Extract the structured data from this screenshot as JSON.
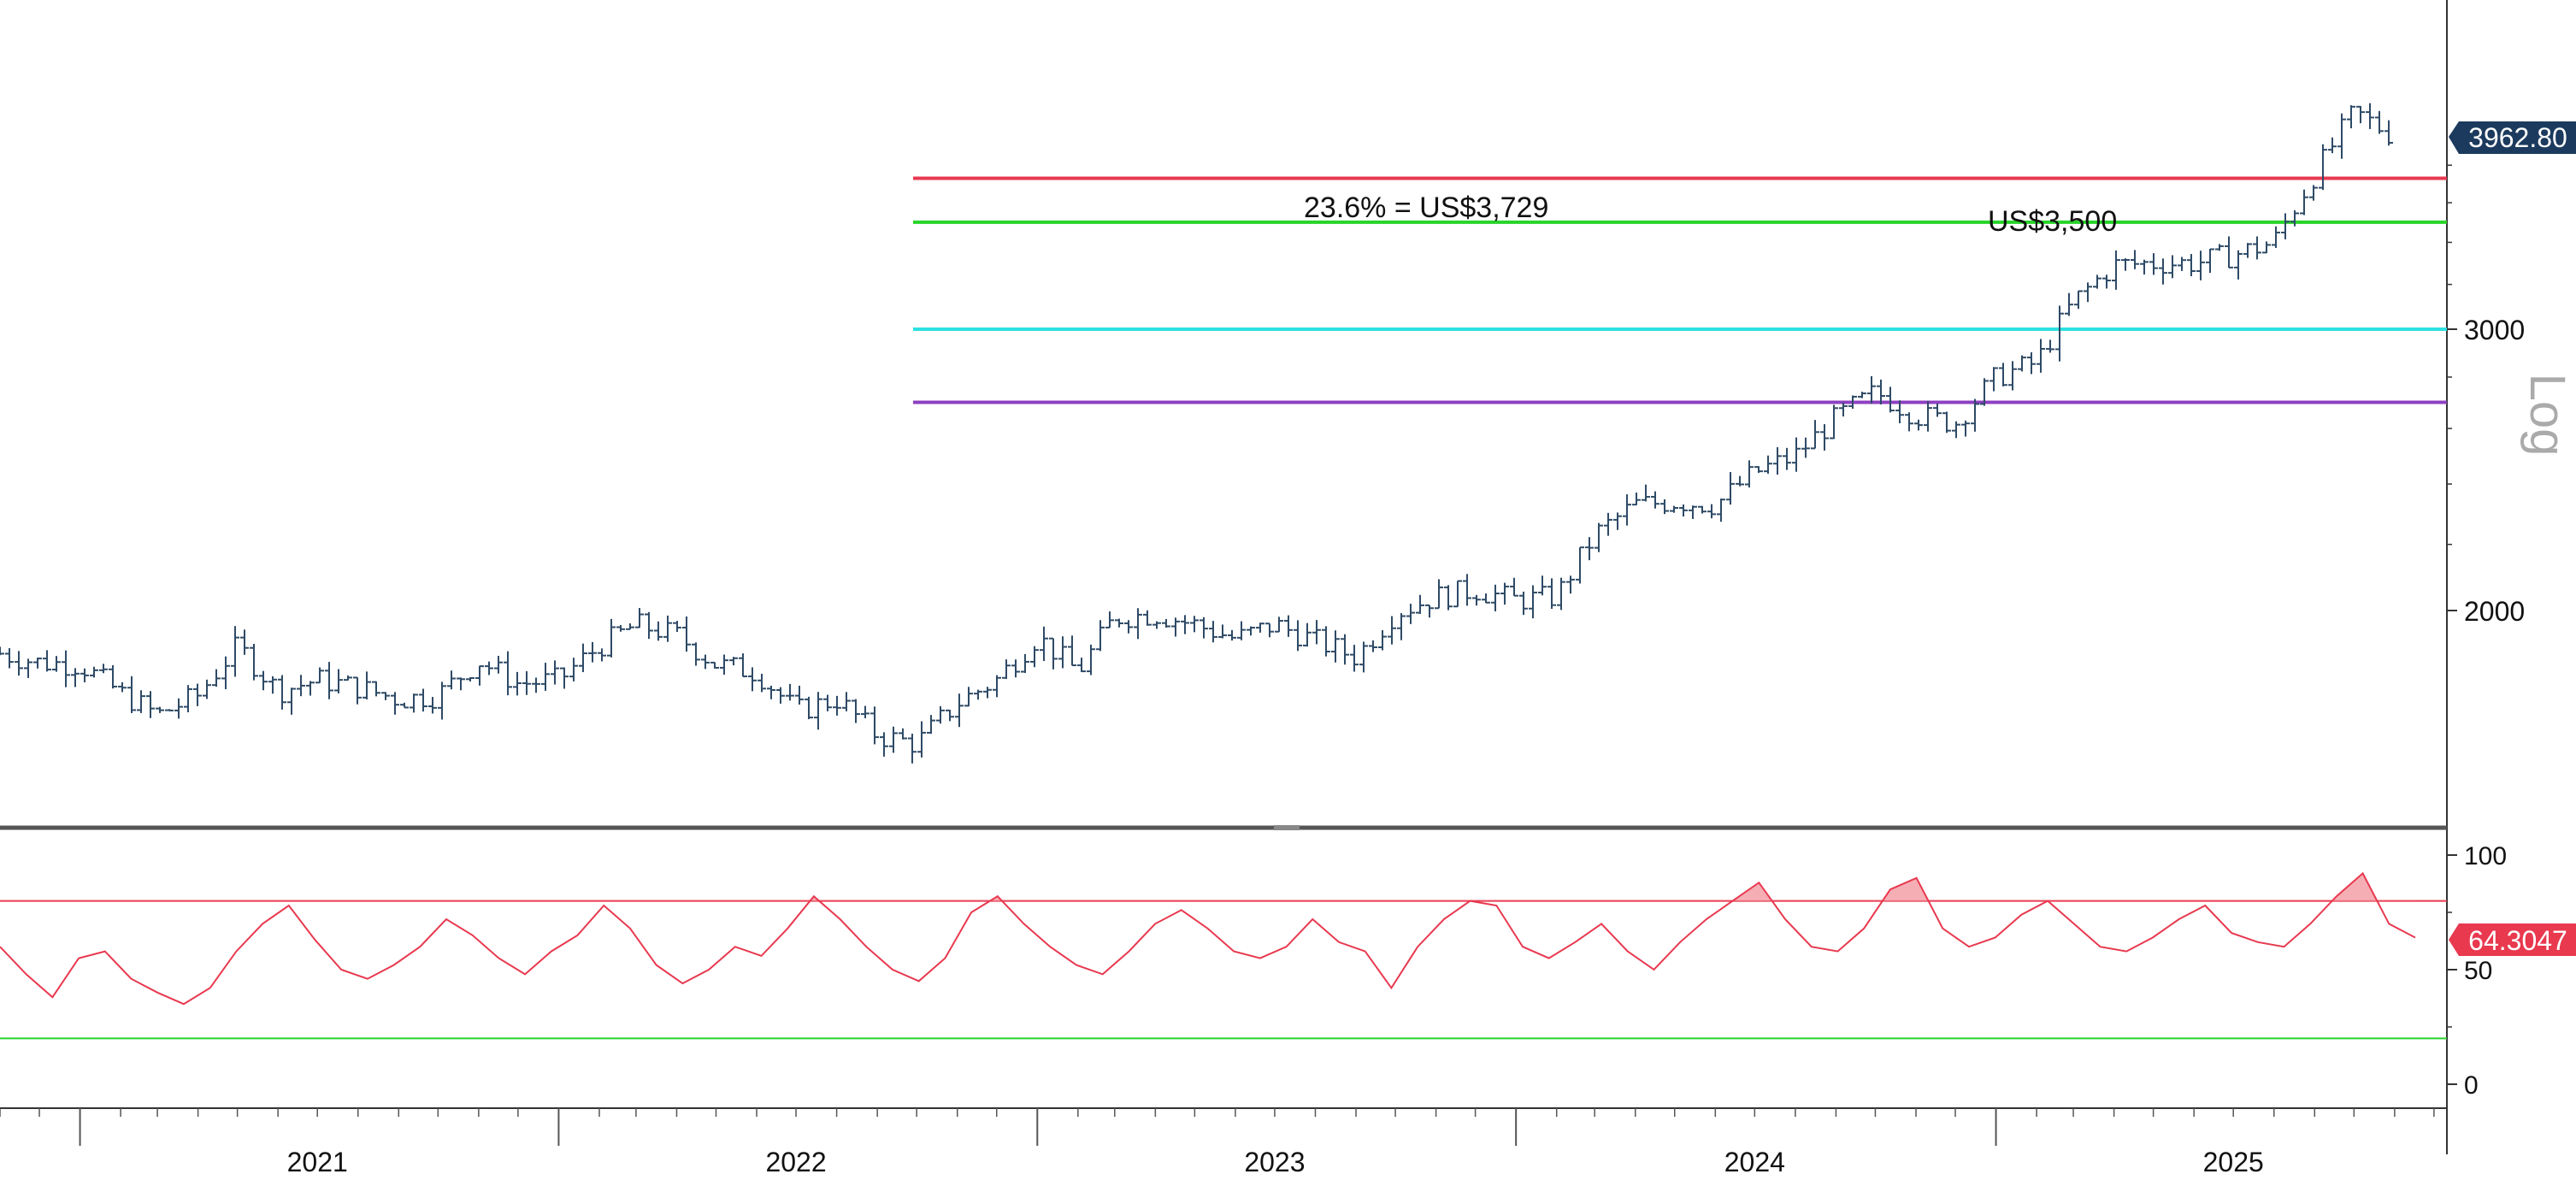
{
  "chart_data": [
    {
      "type": "line",
      "style": "ohlc-bars",
      "panel": "price",
      "scale": "log",
      "axis_label": "Log",
      "y_ticks": [
        2000,
        3000
      ],
      "last_value_label": "3962.80",
      "last_value": 3962.8,
      "colors": {
        "bars": "#2e4a66",
        "last_badge": "#1c3a5e"
      },
      "annotations": [
        {
          "text": "23.6% = US$3,729"
        },
        {
          "text": "US$3,500"
        }
      ],
      "levels": [
        {
          "value": 3729,
          "color": "#e8394f"
        },
        {
          "value": 3500,
          "color": "#28d42a"
        },
        {
          "value": 3000,
          "color": "#2ee0e0"
        },
        {
          "value": 2700,
          "color": "#8d3fc0"
        }
      ],
      "x_period": [
        "2020-11",
        "2025-11"
      ],
      "series_points": [
        [
          "2020-11",
          1880
        ],
        [
          "2020-12",
          1855
        ],
        [
          "2021-01",
          1850
        ],
        [
          "2021-02",
          1775
        ],
        [
          "2021-03",
          1720
        ],
        [
          "2021-04",
          1770
        ],
        [
          "2021-05",
          1900
        ],
        [
          "2021-06",
          1780
        ],
        [
          "2021-07",
          1810
        ],
        [
          "2021-08",
          1790
        ],
        [
          "2021-09",
          1760
        ],
        [
          "2021-10",
          1770
        ],
        [
          "2021-11",
          1860
        ],
        [
          "2021-12",
          1800
        ],
        [
          "2022-01",
          1810
        ],
        [
          "2022-02",
          1900
        ],
        [
          "2022-03",
          1960
        ],
        [
          "2022-04",
          1930
        ],
        [
          "2022-05",
          1850
        ],
        [
          "2022-06",
          1830
        ],
        [
          "2022-07",
          1730
        ],
        [
          "2022-08",
          1760
        ],
        [
          "2022-09",
          1670
        ],
        [
          "2022-10",
          1650
        ],
        [
          "2022-11",
          1750
        ],
        [
          "2022-12",
          1810
        ],
        [
          "2023-01",
          1925
        ],
        [
          "2023-02",
          1830
        ],
        [
          "2023-03",
          1980
        ],
        [
          "2023-04",
          1990
        ],
        [
          "2023-05",
          1960
        ],
        [
          "2023-06",
          1920
        ],
        [
          "2023-07",
          1960
        ],
        [
          "2023-08",
          1915
        ],
        [
          "2023-09",
          1870
        ],
        [
          "2023-10",
          1995
        ],
        [
          "2023-11",
          2040
        ],
        [
          "2023-12",
          2060
        ],
        [
          "2024-01",
          2030
        ],
        [
          "2024-02",
          2040
        ],
        [
          "2024-03",
          2230
        ],
        [
          "2024-04",
          2330
        ],
        [
          "2024-05",
          2340
        ],
        [
          "2024-06",
          2330
        ],
        [
          "2024-07",
          2440
        ],
        [
          "2024-08",
          2500
        ],
        [
          "2024-09",
          2640
        ],
        [
          "2024-10",
          2740
        ],
        [
          "2024-11",
          2650
        ],
        [
          "2024-12",
          2620
        ],
        [
          "2025-01",
          2800
        ],
        [
          "2025-02",
          2860
        ],
        [
          "2025-03",
          3120
        ],
        [
          "2025-04",
          3290
        ],
        [
          "2025-05",
          3300
        ],
        [
          "2025-06",
          3300
        ],
        [
          "2025-07",
          3340
        ],
        [
          "2025-08",
          3400
        ],
        [
          "2025-09",
          3750
        ],
        [
          "2025-10",
          4100
        ],
        [
          "2025-11",
          3960
        ]
      ],
      "x_labels": [
        "2021",
        "2022",
        "2023",
        "2024",
        "2025"
      ]
    },
    {
      "type": "line",
      "panel": "rsi",
      "y_ticks": [
        0,
        50,
        100
      ],
      "ylim": [
        0,
        100
      ],
      "last_value_label": "64.3047",
      "last_value": 64.3047,
      "overbought": 80,
      "oversold": 20,
      "colors": {
        "line": "#e8394f",
        "overbought": "#e8394f",
        "oversold": "#28d42a",
        "badge": "#e8394f"
      },
      "values": [
        60,
        48,
        38,
        55,
        58,
        46,
        40,
        35,
        42,
        58,
        70,
        78,
        63,
        50,
        46,
        52,
        60,
        72,
        65,
        55,
        48,
        58,
        65,
        78,
        68,
        52,
        44,
        50,
        60,
        56,
        68,
        82,
        72,
        60,
        50,
        45,
        55,
        75,
        82,
        70,
        60,
        52,
        48,
        58,
        70,
        76,
        68,
        58,
        55,
        60,
        72,
        62,
        58,
        42,
        60,
        72,
        80,
        78,
        60,
        55,
        62,
        70,
        58,
        50,
        62,
        72,
        80,
        88,
        72,
        60,
        58,
        68,
        85,
        90,
        68,
        60,
        64,
        74,
        80,
        70,
        60,
        58,
        64,
        72,
        78,
        66,
        62,
        60,
        70,
        82,
        92,
        70,
        64
      ]
    }
  ]
}
